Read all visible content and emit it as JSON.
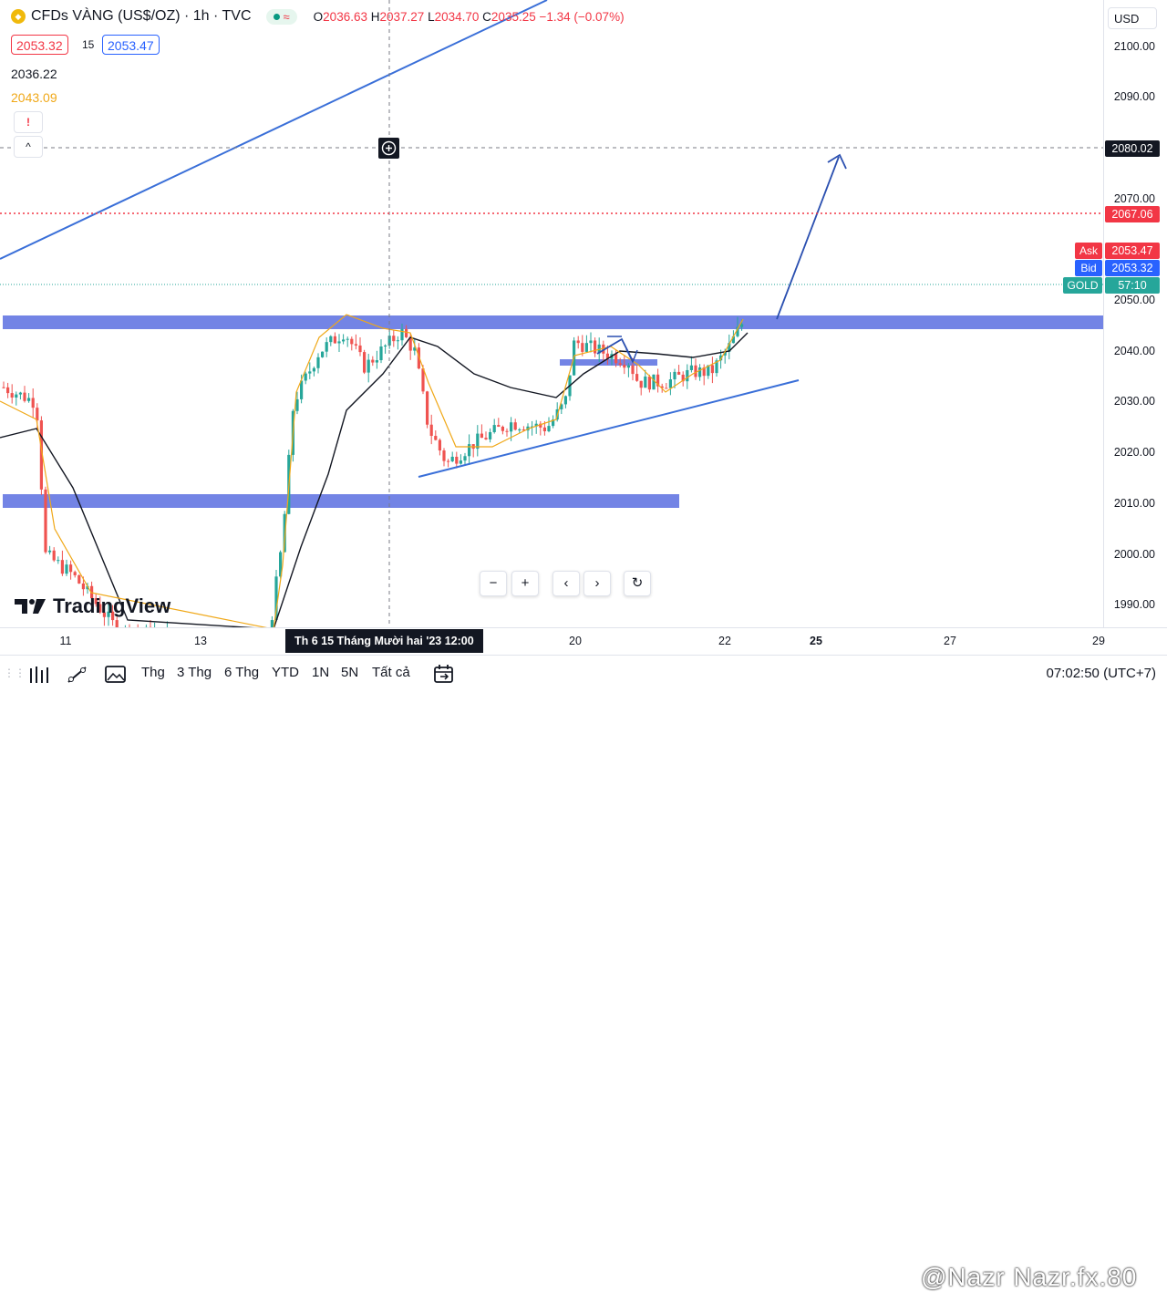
{
  "legend": {
    "symbol_title": "CFDs VÀNG (US$/OZ) · 1h · TVC",
    "status_wave": "≈",
    "open_key": "O",
    "open": "2036.63",
    "high_key": "H",
    "high": "2037.27",
    "low_key": "L",
    "low": "2034.70",
    "close_key": "C",
    "close": "2035.25",
    "change": "−1.34 (−0.07%)",
    "bid_box": "2053.32",
    "spread": "15",
    "ask_box": "2053.47",
    "ma1_value": "2036.22",
    "ma2_value": "2043.09",
    "alert_glyph": "!",
    "collapse_glyph": "^"
  },
  "currency": "USD",
  "price_ticks": [
    "2100.00",
    "2090.00",
    "2070.00",
    "2050.00",
    "2040.00",
    "2030.00",
    "2020.00",
    "2010.00",
    "2000.00",
    "1990.00"
  ],
  "price_labels": {
    "crosshair": "2080.02",
    "dotted_level": "2067.06",
    "ask_tag": "Ask",
    "ask": "2053.47",
    "bid_tag": "Bid",
    "bid": "2053.32",
    "symbol_tag": "GOLD",
    "countdown": "57:10"
  },
  "time_ticks": [
    "11",
    "13",
    "20",
    "22",
    "25",
    "27",
    "29"
  ],
  "crosshair_time": "Th 6 15 Tháng Mười hai '23   12:00",
  "nav_buttons": {
    "zoom_out": "−",
    "zoom_in": "+",
    "left": "‹",
    "right": "›",
    "reset": "↻"
  },
  "brand": "TradingView",
  "ranges": [
    "Thg",
    "3 Thg",
    "6 Thg",
    "YTD",
    "1N",
    "5N",
    "Tất cả"
  ],
  "clock": "07:02:50 (UTC+7)",
  "watermark": "@Nazr Nazr.fx.80",
  "colors": {
    "up": "#26a69a",
    "down": "#ef5350",
    "zone": "#5b6fe0",
    "trend": "#3a6fd8",
    "ma_fast": "#f0a818",
    "ma_slow": "#131722",
    "ask": "#f23645",
    "bid": "#2962ff",
    "crosshair_label": "#131722"
  }
}
